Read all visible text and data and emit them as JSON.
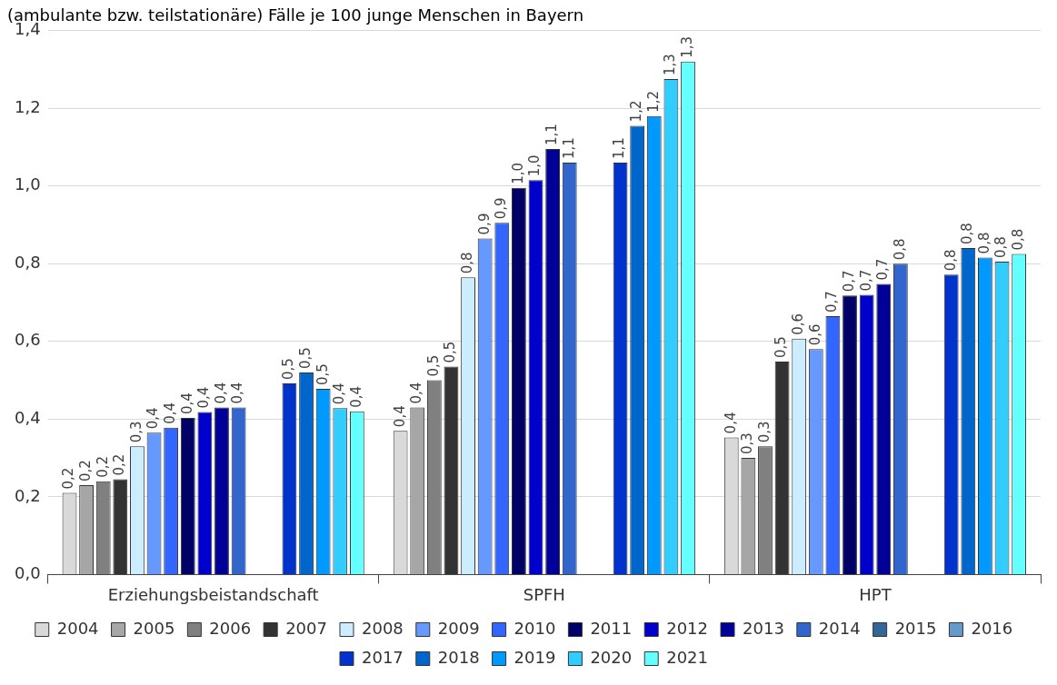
{
  "chart_data": {
    "type": "bar",
    "title": "(ambulante bzw. teilstationäre) Fälle je 100 junge Menschen in Bayern",
    "categories": [
      "Erziehungsbeistandschaft",
      "SPFH",
      "HPT"
    ],
    "ylim": [
      0,
      1.4
    ],
    "yticks": [
      {
        "value": 0,
        "label": "0,0"
      },
      {
        "value": 0.2,
        "label": "0,2"
      },
      {
        "value": 0.4,
        "label": "0,4"
      },
      {
        "value": 0.6,
        "label": "0,6"
      },
      {
        "value": 0.8,
        "label": "0,8"
      },
      {
        "value": 1,
        "label": "1,0"
      },
      {
        "value": 1.2,
        "label": "1,2"
      },
      {
        "value": 1.4,
        "label": "1,4"
      }
    ],
    "grid": "y",
    "legend": "bottom",
    "series": [
      {
        "name": "2004",
        "color": "#d9d9d9",
        "values": [
          0.21,
          0.37,
          0.353
        ],
        "value_labels": [
          "0,2",
          "0,4",
          "0,4"
        ]
      },
      {
        "name": "2005",
        "color": "#a6a6a6",
        "values": [
          0.23,
          0.43,
          0.3
        ],
        "value_labels": [
          "0,2",
          "0,4",
          "0,3"
        ]
      },
      {
        "name": "2006",
        "color": "#808080",
        "values": [
          0.24,
          0.5,
          0.33
        ],
        "value_labels": [
          "0,2",
          "0,5",
          "0,3"
        ]
      },
      {
        "name": "2007",
        "color": "#333333",
        "values": [
          0.245,
          0.535,
          0.548
        ],
        "value_labels": [
          "0,2",
          "0,5",
          "0,5"
        ]
      },
      {
        "name": "2008",
        "color": "#ccecff",
        "values": [
          0.33,
          0.765,
          0.607
        ],
        "value_labels": [
          "0,3",
          "0,8",
          "0,6"
        ]
      },
      {
        "name": "2009",
        "color": "#6699ff",
        "values": [
          0.365,
          0.865,
          0.58
        ],
        "value_labels": [
          "0,4",
          "0,9",
          "0,6"
        ]
      },
      {
        "name": "2010",
        "color": "#3366ff",
        "values": [
          0.378,
          0.905,
          0.665
        ],
        "value_labels": [
          "0,4",
          "0,9",
          "0,7"
        ]
      },
      {
        "name": "2011",
        "color": "#000066",
        "values": [
          0.403,
          0.995,
          0.718
        ],
        "value_labels": [
          "0,4",
          "1,0",
          "0,7"
        ]
      },
      {
        "name": "2012",
        "color": "#0000cc",
        "values": [
          0.418,
          1.015,
          0.72
        ],
        "value_labels": [
          "0,4",
          "1,0",
          "0,7"
        ]
      },
      {
        "name": "2013",
        "color": "#000099",
        "values": [
          0.43,
          1.095,
          0.748
        ],
        "value_labels": [
          "0,4",
          "1,1",
          "0,7"
        ]
      },
      {
        "name": "2014",
        "color": "#3366cc",
        "values": [
          0.43,
          1.06,
          0.8
        ],
        "value_labels": [
          "0,4",
          "1,1",
          "0,8"
        ]
      },
      {
        "name": "2015",
        "color": "#336699",
        "values": [
          null,
          null,
          null
        ],
        "value_labels": [
          null,
          null,
          null
        ]
      },
      {
        "name": "2016",
        "color": "#6699cc",
        "values": [
          null,
          null,
          null
        ],
        "value_labels": [
          null,
          null,
          null
        ]
      },
      {
        "name": "2017",
        "color": "#0033cc",
        "values": [
          0.492,
          1.06,
          0.772
        ],
        "value_labels": [
          "0,5",
          "1,1",
          "0,8"
        ]
      },
      {
        "name": "2018",
        "color": "#0066cc",
        "values": [
          0.52,
          1.155,
          0.84
        ],
        "value_labels": [
          "0,5",
          "1,2",
          "0,8"
        ]
      },
      {
        "name": "2019",
        "color": "#0099ff",
        "values": [
          0.478,
          1.18,
          0.816
        ],
        "value_labels": [
          "0,5",
          "1,2",
          "0,8"
        ]
      },
      {
        "name": "2020",
        "color": "#33ccff",
        "values": [
          0.428,
          1.275,
          0.805
        ],
        "value_labels": [
          "0,4",
          "1,3",
          "0,8"
        ]
      },
      {
        "name": "2021",
        "color": "#66ffff",
        "values": [
          0.42,
          1.32,
          0.825
        ],
        "value_labels": [
          "0,4",
          "1,3",
          "0,8"
        ]
      }
    ]
  }
}
